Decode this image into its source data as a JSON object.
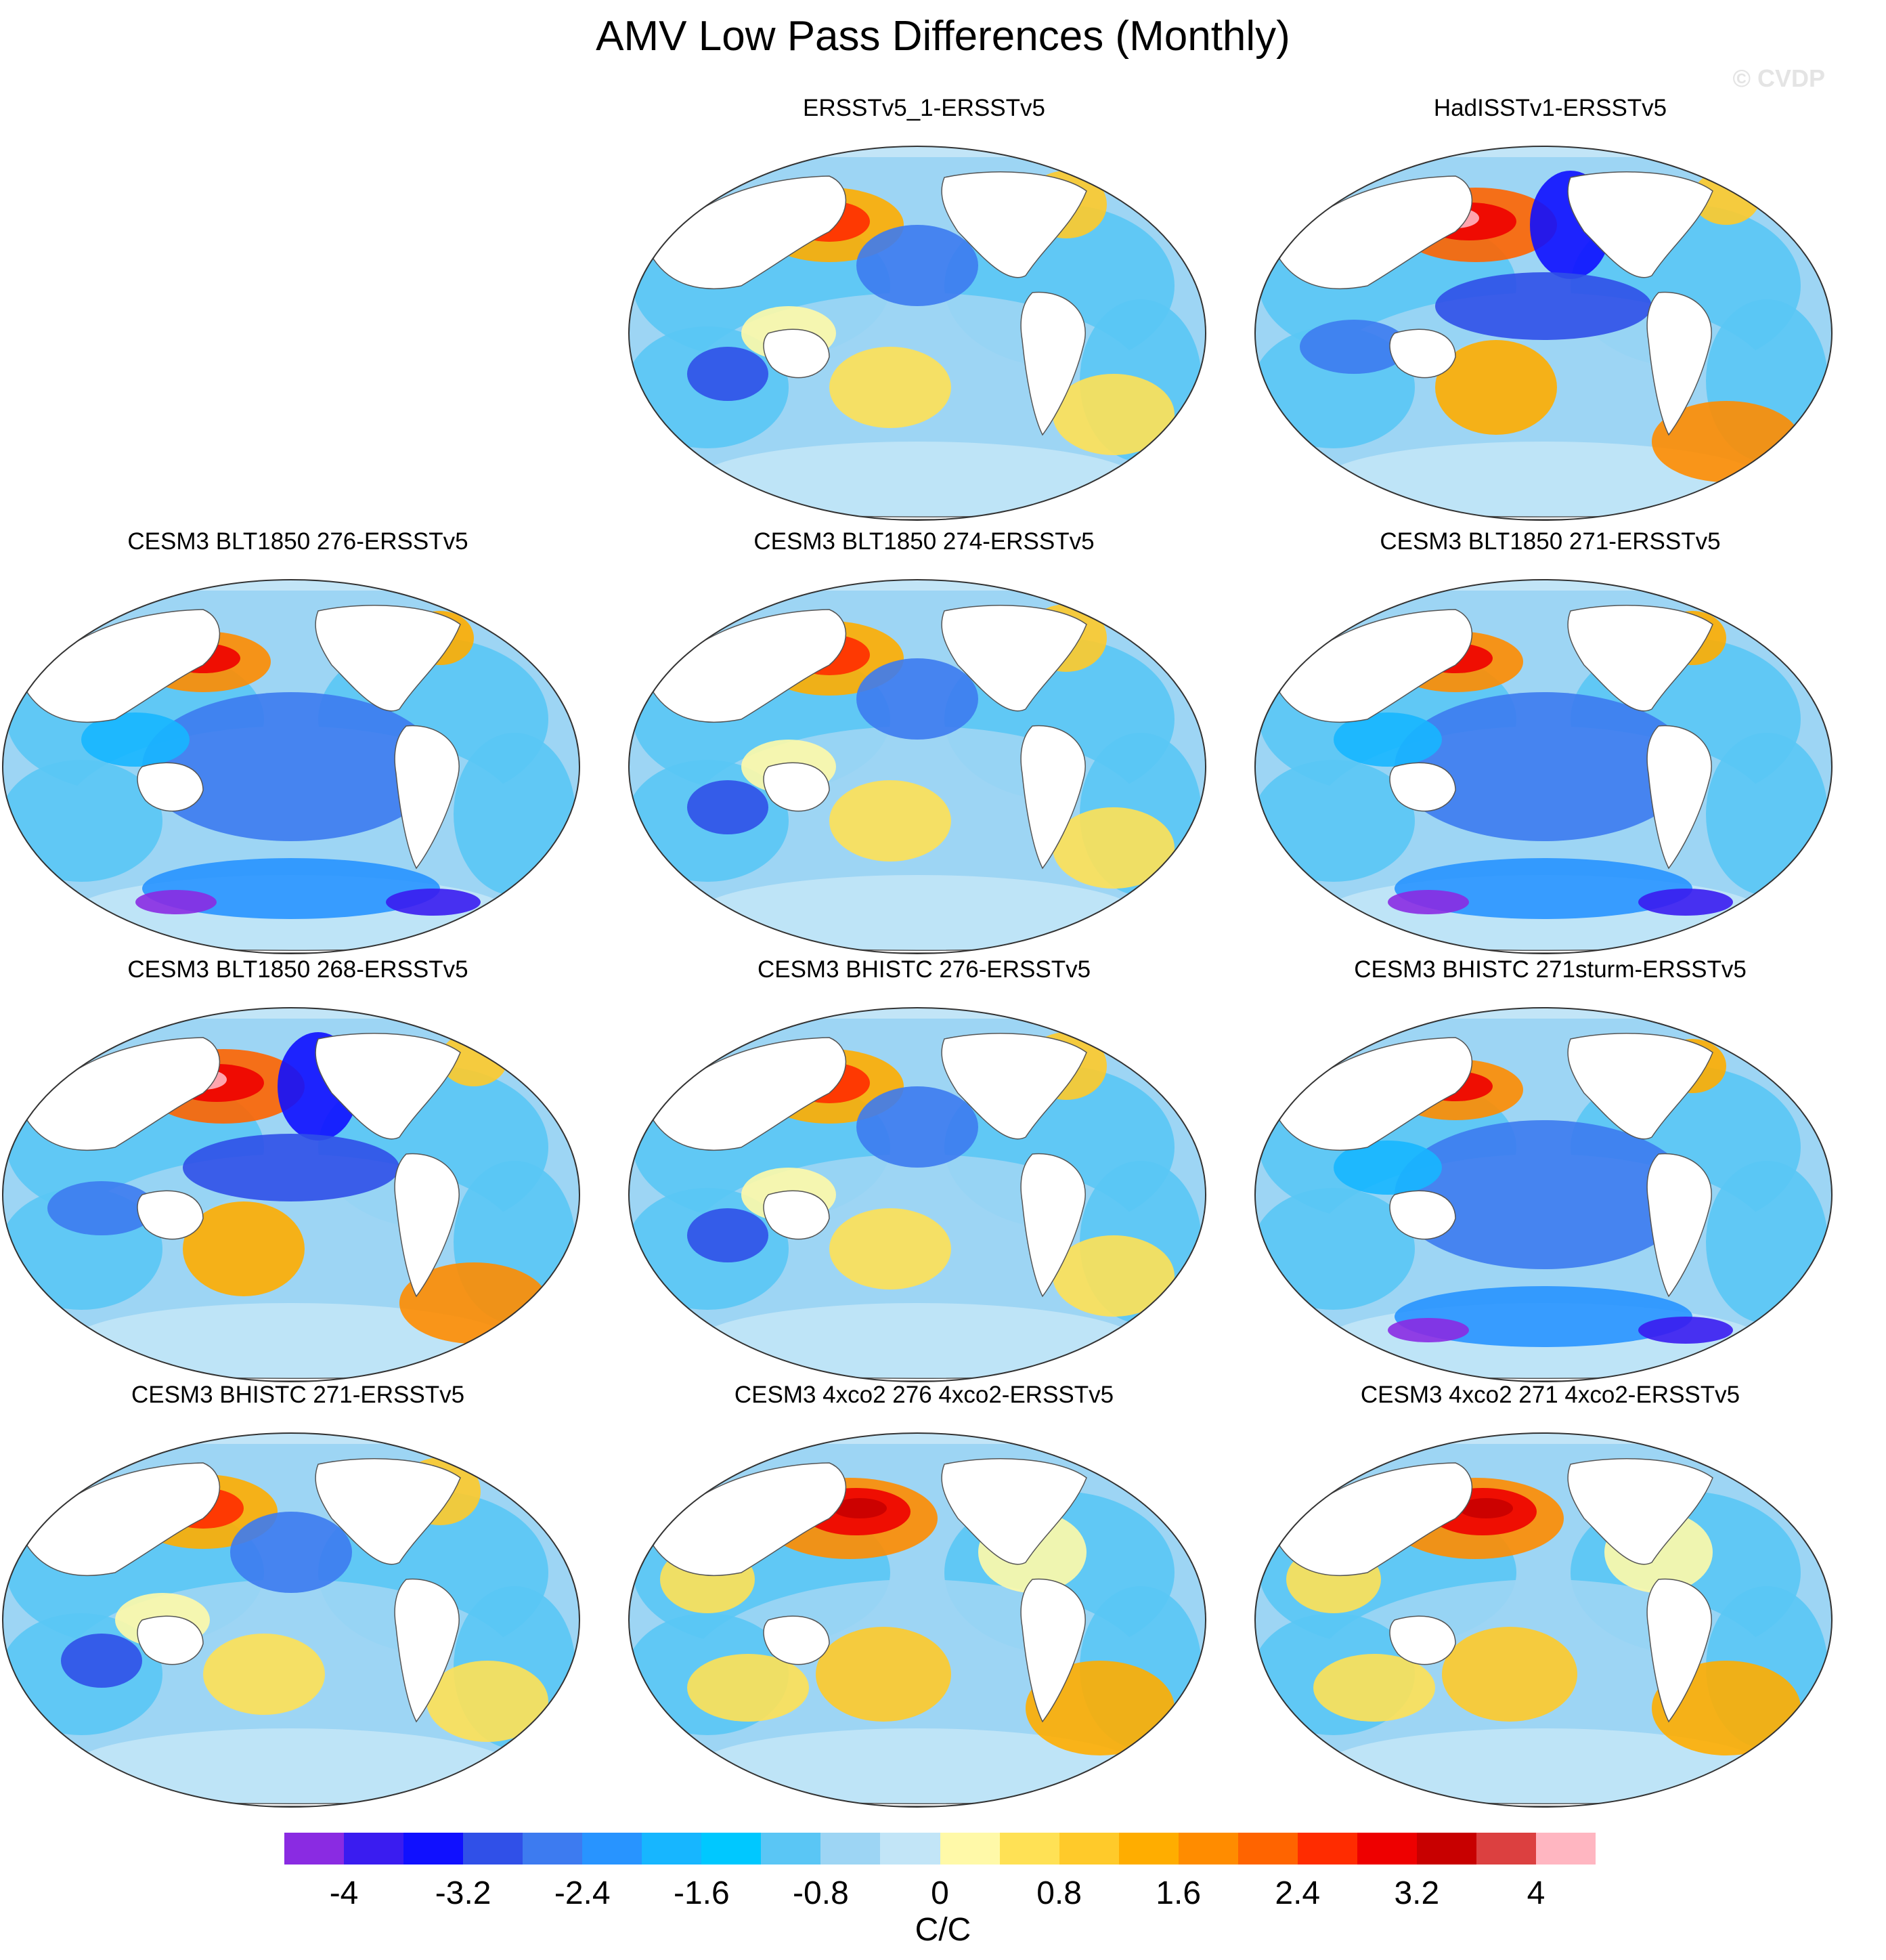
{
  "title": "AMV Low Pass Differences (Monthly)",
  "watermark": "© CVDP",
  "panels": [
    {
      "title": "ERSSTv5_1-ERSSTv5",
      "theme": "mixed"
    },
    {
      "title": "HadISSTv1-ERSSTv5",
      "theme": "mixed-strong"
    },
    {
      "title": "CESM3 BLT1850 276-ERSSTv5",
      "theme": "cool"
    },
    {
      "title": "CESM3 BLT1850 274-ERSSTv5",
      "theme": "mixed"
    },
    {
      "title": "CESM3 BLT1850 271-ERSSTv5",
      "theme": "cool"
    },
    {
      "title": "CESM3 BLT1850 268-ERSSTv5",
      "theme": "mixed-strong"
    },
    {
      "title": "CESM3 BHISTC 276-ERSSTv5",
      "theme": "mixed"
    },
    {
      "title": "CESM3 BHISTC 271sturm-ERSSTv5",
      "theme": "cool"
    },
    {
      "title": "CESM3 BHISTC 271-ERSSTv5",
      "theme": "mixed"
    },
    {
      "title": "CESM3 4xco2 276 4xco2-ERSSTv5",
      "theme": "warm"
    },
    {
      "title": "CESM3 4xco2 271 4xco2-ERSSTv5",
      "theme": "warm"
    }
  ],
  "colorbar": {
    "colors": [
      "#8a2be2",
      "#3a1cf0",
      "#1010ff",
      "#3050e8",
      "#3d7bf0",
      "#2894ff",
      "#17b6ff",
      "#00c8ff",
      "#5ac6f5",
      "#9dd5f4",
      "#c2e5f7",
      "#fff9a8",
      "#ffe155",
      "#ffca2a",
      "#ffad00",
      "#ff8c00",
      "#ff6400",
      "#ff2c00",
      "#ee0000",
      "#c80000",
      "#dc4040",
      "#ffb6c1"
    ],
    "tick_labels": [
      "-4",
      "-3.2",
      "-2.4",
      "-1.6",
      "-0.8",
      "0",
      "0.8",
      "1.6",
      "2.4",
      "3.2",
      "4"
    ],
    "units": "C/C"
  }
}
